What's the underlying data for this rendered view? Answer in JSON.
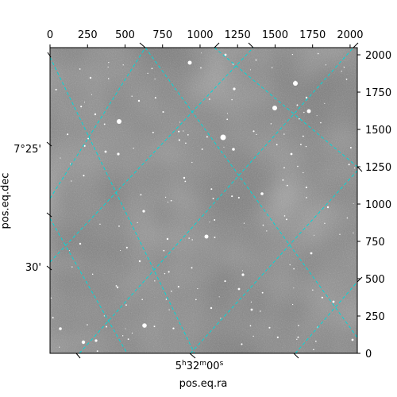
{
  "chart_data": {
    "type": "image",
    "xlabel": "pos.eq.ra",
    "ylabel": "pos.eq.dec",
    "pixel_x_ticks": [
      "0",
      "250",
      "500",
      "750",
      "1000",
      "1250",
      "1500",
      "1750",
      "2000"
    ],
    "pixel_y_ticks": [
      "0",
      "250",
      "500",
      "750",
      "1000",
      "1250",
      "1500",
      "1750",
      "2000"
    ],
    "dec_tick_labels": [
      "7°25'",
      "30'"
    ],
    "ra_tick_label": {
      "main": "5",
      "h": "h",
      "m_val": "32",
      "m": "m",
      "s_val": "00",
      "s": "s"
    },
    "grid": true,
    "grid_color": "#00d8d8",
    "image_colormap": "gray",
    "pixel_range": [
      0,
      2048
    ]
  }
}
